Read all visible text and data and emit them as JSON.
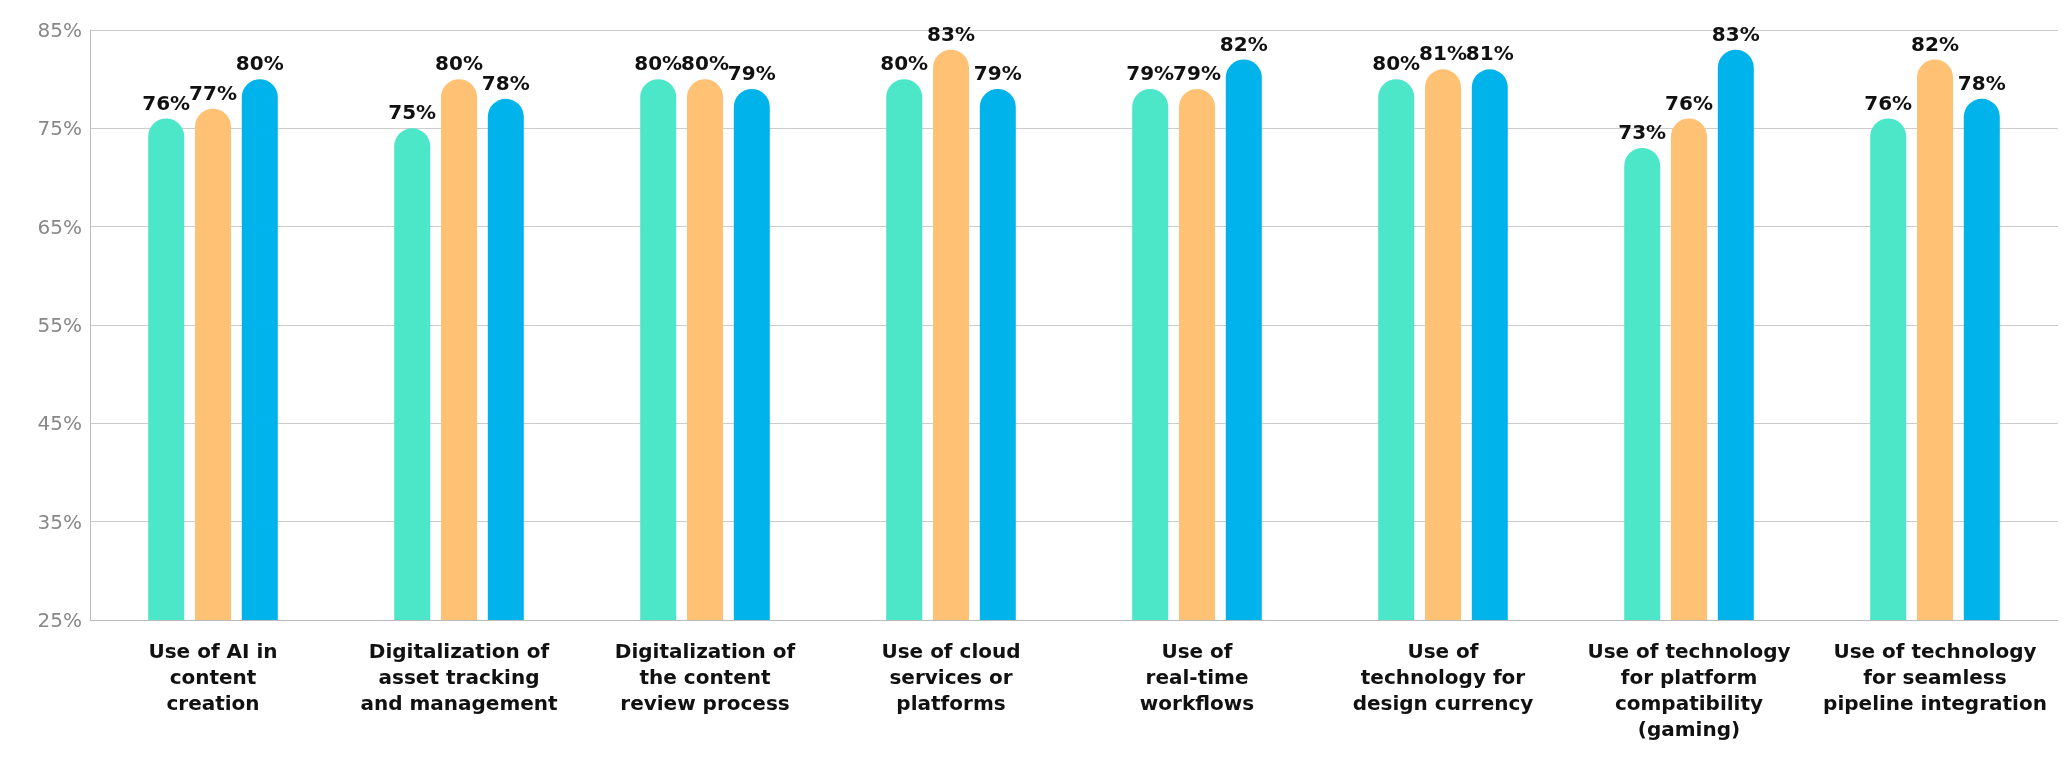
{
  "chart_data": {
    "type": "bar",
    "categories": [
      "Use of AI in\ncontent\ncreation",
      "Digitalization of\nasset tracking\nand management",
      "Digitalization of\nthe content\nreview process",
      "Use of cloud\nservices or\nplatforms",
      "Use of\nreal-time\nworkflows",
      "Use of\ntechnology for\ndesign currency",
      "Use of technology\nfor platform\ncompatibility\n(gaming)",
      "Use of technology\nfor seamless\npipeline integration"
    ],
    "series": [
      {
        "color": "#4ce6c8",
        "values": [
          76,
          75,
          80,
          80,
          79,
          80,
          73,
          76
        ],
        "value_labels": [
          "76%",
          "75%",
          "80%",
          "80%",
          "79%",
          "80%",
          "73%",
          "76%"
        ]
      },
      {
        "color": "#ffc174",
        "values": [
          77,
          80,
          80,
          83,
          79,
          81,
          76,
          82
        ],
        "value_labels": [
          "77%",
          "80%",
          "80%",
          "83%",
          "79%",
          "81%",
          "76%",
          "82%"
        ]
      },
      {
        "color": "#00b4eb",
        "values": [
          80,
          78,
          79,
          79,
          82,
          81,
          83,
          78
        ],
        "value_labels": [
          "80%",
          "78%",
          "79%",
          "79%",
          "82%",
          "81%",
          "83%",
          "78%"
        ]
      }
    ],
    "ylim": [
      25,
      85
    ],
    "yticks": [
      {
        "value": 25,
        "label": "25%"
      },
      {
        "value": 35,
        "label": "35%"
      },
      {
        "value": 45,
        "label": "45%"
      },
      {
        "value": 55,
        "label": "55%"
      },
      {
        "value": 65,
        "label": "65%"
      },
      {
        "value": 75,
        "label": "75%"
      },
      {
        "value": 85,
        "label": "85%"
      }
    ],
    "grid": "y"
  }
}
